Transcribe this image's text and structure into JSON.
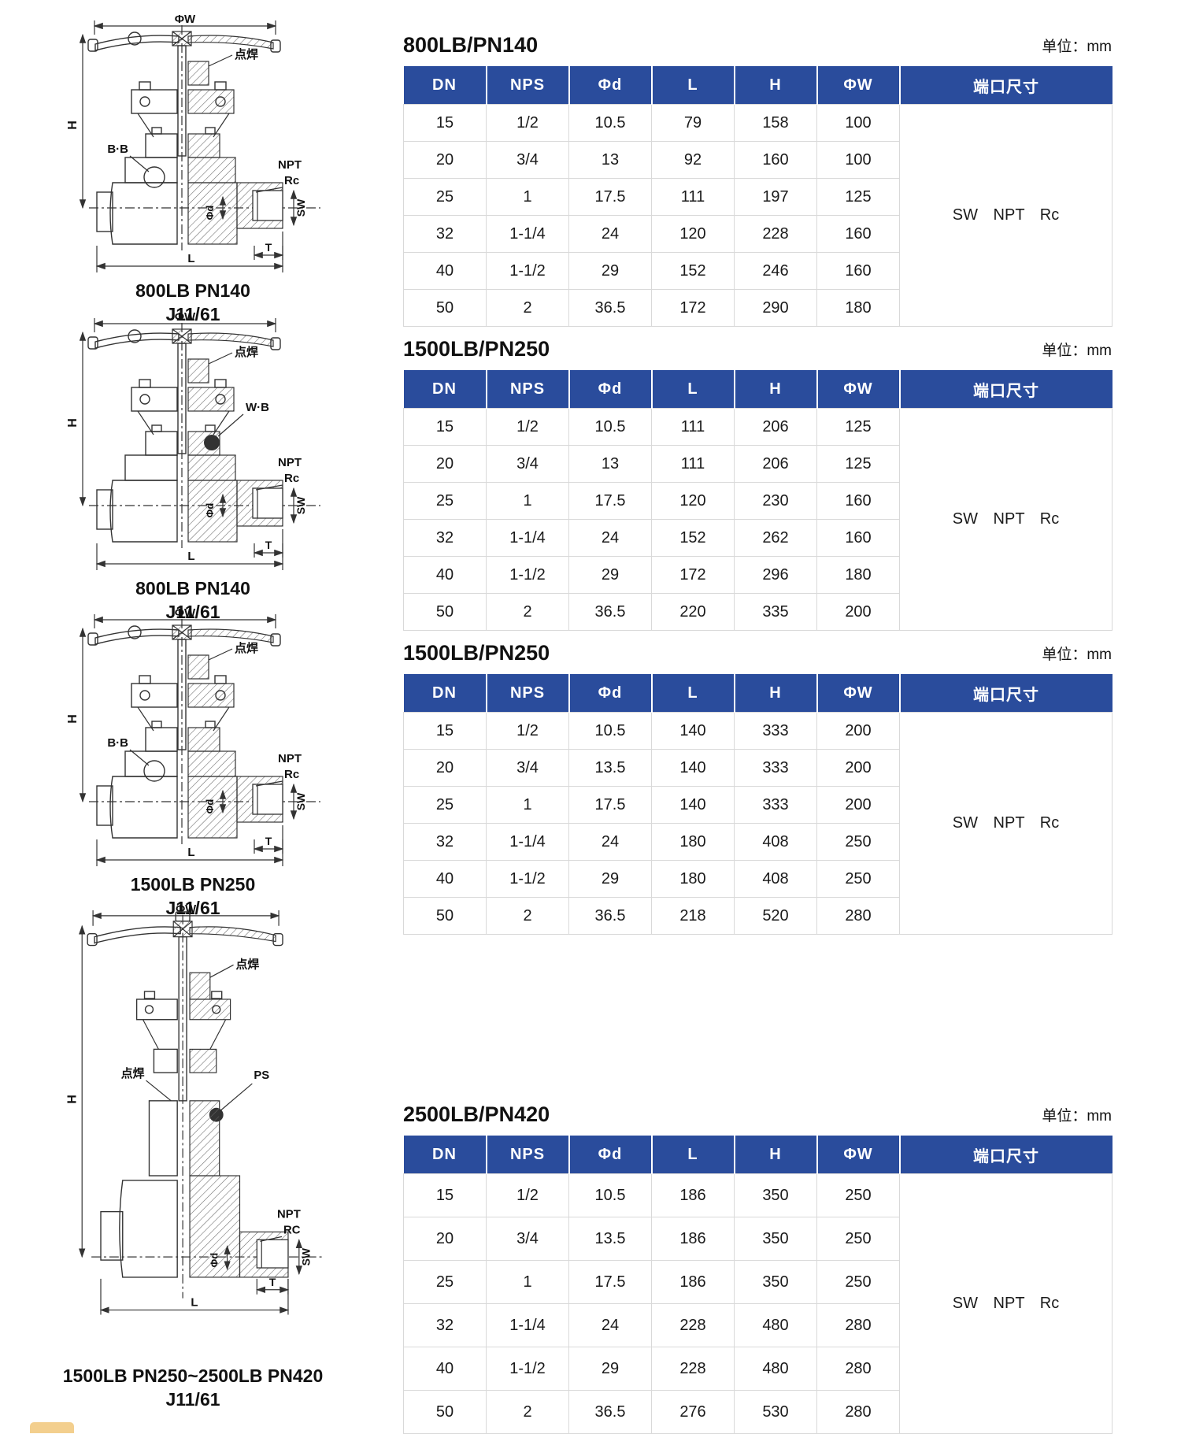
{
  "page": {
    "unit_label": "单位：mm"
  },
  "colors": {
    "table_header_bg": "#2a4c9c",
    "table_header_text": "#ffffff",
    "table_border": "#d9d9d9"
  },
  "tables": [
    {
      "title": "800LB/PN140",
      "columns": [
        "DN",
        "NPS",
        "Φd",
        "L",
        "H",
        "ΦW",
        "端口尺寸"
      ],
      "rows": [
        [
          "15",
          "1/2",
          "10.5",
          "79",
          "158",
          "100"
        ],
        [
          "20",
          "3/4",
          "13",
          "92",
          "160",
          "100"
        ],
        [
          "25",
          "1",
          "17.5",
          "111",
          "197",
          "125"
        ],
        [
          "32",
          "1-1/4",
          "24",
          "120",
          "228",
          "160"
        ],
        [
          "40",
          "1-1/2",
          "29",
          "152",
          "246",
          "160"
        ],
        [
          "50",
          "2",
          "36.5",
          "172",
          "290",
          "180"
        ]
      ],
      "port_size": "SW NPT Rc"
    },
    {
      "title": "1500LB/PN250",
      "columns": [
        "DN",
        "NPS",
        "Φd",
        "L",
        "H",
        "ΦW",
        "端口尺寸"
      ],
      "rows": [
        [
          "15",
          "1/2",
          "10.5",
          "111",
          "206",
          "125"
        ],
        [
          "20",
          "3/4",
          "13",
          "111",
          "206",
          "125"
        ],
        [
          "25",
          "1",
          "17.5",
          "120",
          "230",
          "160"
        ],
        [
          "32",
          "1-1/4",
          "24",
          "152",
          "262",
          "160"
        ],
        [
          "40",
          "1-1/2",
          "29",
          "172",
          "296",
          "180"
        ],
        [
          "50",
          "2",
          "36.5",
          "220",
          "335",
          "200"
        ]
      ],
      "port_size": "SW NPT Rc"
    },
    {
      "title": "1500LB/PN250",
      "columns": [
        "DN",
        "NPS",
        "Φd",
        "L",
        "H",
        "ΦW",
        "端口尺寸"
      ],
      "rows": [
        [
          "15",
          "1/2",
          "10.5",
          "140",
          "333",
          "200"
        ],
        [
          "20",
          "3/4",
          "13.5",
          "140",
          "333",
          "200"
        ],
        [
          "25",
          "1",
          "17.5",
          "140",
          "333",
          "200"
        ],
        [
          "32",
          "1-1/4",
          "24",
          "180",
          "408",
          "250"
        ],
        [
          "40",
          "1-1/2",
          "29",
          "180",
          "408",
          "250"
        ],
        [
          "50",
          "2",
          "36.5",
          "218",
          "520",
          "280"
        ]
      ],
      "port_size": "SW NPT Rc"
    },
    {
      "title": "2500LB/PN420",
      "columns": [
        "DN",
        "NPS",
        "Φd",
        "L",
        "H",
        "ΦW",
        "端口尺寸"
      ],
      "rows": [
        [
          "15",
          "1/2",
          "10.5",
          "186",
          "350",
          "250"
        ],
        [
          "20",
          "3/4",
          "13.5",
          "186",
          "350",
          "250"
        ],
        [
          "25",
          "1",
          "17.5",
          "186",
          "350",
          "250"
        ],
        [
          "32",
          "1-1/4",
          "24",
          "228",
          "480",
          "280"
        ],
        [
          "40",
          "1-1/2",
          "29",
          "228",
          "480",
          "280"
        ],
        [
          "50",
          "2",
          "36.5",
          "276",
          "530",
          "280"
        ]
      ],
      "port_size": "SW NPT Rc"
    }
  ],
  "drawings": [
    {
      "caption1": "800LB PN140",
      "caption2": "J11/61",
      "labels": {
        "phiW": "ΦW",
        "spotWeld": "点焊",
        "H": "H",
        "side": "B·B",
        "NPT": "NPT",
        "Rc": "Rc",
        "phid": "Φd",
        "SW": "SW",
        "T": "T",
        "L": "L"
      }
    },
    {
      "caption1": "800LB PN140",
      "caption2": "J11/61",
      "labels": {
        "phiW": "ΦW",
        "spotWeld": "点焊",
        "H": "H",
        "side": "W·B",
        "NPT": "NPT",
        "Rc": "Rc",
        "phid": "Φd",
        "SW": "SW",
        "T": "T",
        "L": "L"
      }
    },
    {
      "caption1": "1500LB PN250",
      "caption2": "J11/61",
      "labels": {
        "phiW": "ΦW",
        "spotWeld": "点焊",
        "H": "H",
        "side": "B·B",
        "NPT": "NPT",
        "Rc": "Rc",
        "phid": "Φd",
        "SW": "SW",
        "T": "T",
        "L": "L"
      }
    },
    {
      "caption1": "1500LB PN250~2500LB PN420",
      "caption2": "J11/61",
      "labels": {
        "phiW": "ΦW",
        "spotWeld": "点焊",
        "spotWeld2": "点焊",
        "H": "H",
        "side": "PS",
        "NPT": "NPT",
        "Rc": "RC",
        "phid": "Φd",
        "SW": "SW",
        "T": "T",
        "L": "L"
      }
    }
  ]
}
